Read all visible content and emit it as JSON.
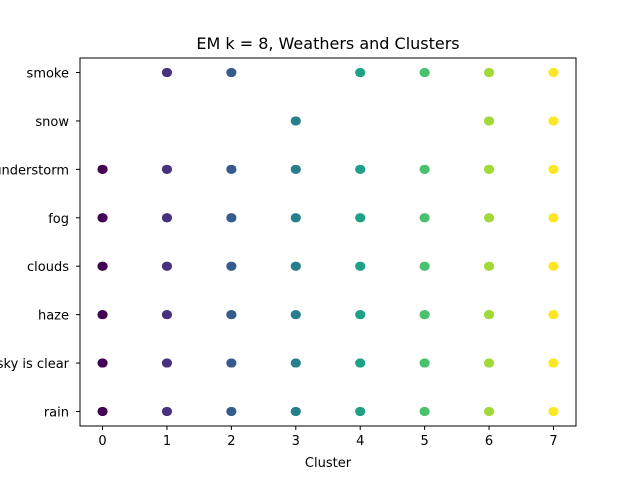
{
  "chart_data": {
    "type": "scatter",
    "title": "EM k = 8, Weathers and Clusters",
    "xlabel": "Cluster",
    "ylabel": "",
    "x_ticks": [
      0,
      1,
      2,
      3,
      4,
      5,
      6,
      7
    ],
    "y_categories": [
      "rain",
      "sky is clear",
      "haze",
      "clouds",
      "fog",
      "thunderstorm",
      "snow",
      "smoke"
    ],
    "xlim": [
      -0.35,
      7.35
    ],
    "ylim": [
      -0.3,
      7.3
    ],
    "grid": false,
    "cluster_colors": [
      "#440154",
      "#46327e",
      "#365c8d",
      "#277f8e",
      "#1fa187",
      "#4ac16d",
      "#a0da39",
      "#fde725"
    ],
    "points": [
      {
        "x": 0,
        "y": "smoke",
        "present": false
      },
      {
        "x": 1,
        "y": "smoke"
      },
      {
        "x": 2,
        "y": "smoke"
      },
      {
        "x": 4,
        "y": "smoke"
      },
      {
        "x": 5,
        "y": "smoke"
      },
      {
        "x": 6,
        "y": "smoke"
      },
      {
        "x": 7,
        "y": "smoke"
      },
      {
        "x": 3,
        "y": "snow"
      },
      {
        "x": 6,
        "y": "snow"
      },
      {
        "x": 7,
        "y": "snow"
      },
      {
        "x": 0,
        "y": "thunderstorm"
      },
      {
        "x": 1,
        "y": "thunderstorm"
      },
      {
        "x": 2,
        "y": "thunderstorm"
      },
      {
        "x": 3,
        "y": "thunderstorm"
      },
      {
        "x": 4,
        "y": "thunderstorm"
      },
      {
        "x": 5,
        "y": "thunderstorm"
      },
      {
        "x": 6,
        "y": "thunderstorm"
      },
      {
        "x": 7,
        "y": "thunderstorm"
      },
      {
        "x": 0,
        "y": "fog"
      },
      {
        "x": 1,
        "y": "fog"
      },
      {
        "x": 2,
        "y": "fog"
      },
      {
        "x": 3,
        "y": "fog"
      },
      {
        "x": 4,
        "y": "fog"
      },
      {
        "x": 5,
        "y": "fog"
      },
      {
        "x": 6,
        "y": "fog"
      },
      {
        "x": 7,
        "y": "fog"
      },
      {
        "x": 0,
        "y": "clouds"
      },
      {
        "x": 1,
        "y": "clouds"
      },
      {
        "x": 2,
        "y": "clouds"
      },
      {
        "x": 3,
        "y": "clouds"
      },
      {
        "x": 4,
        "y": "clouds"
      },
      {
        "x": 5,
        "y": "clouds"
      },
      {
        "x": 6,
        "y": "clouds"
      },
      {
        "x": 7,
        "y": "clouds"
      },
      {
        "x": 0,
        "y": "haze"
      },
      {
        "x": 1,
        "y": "haze"
      },
      {
        "x": 2,
        "y": "haze"
      },
      {
        "x": 3,
        "y": "haze"
      },
      {
        "x": 4,
        "y": "haze"
      },
      {
        "x": 5,
        "y": "haze"
      },
      {
        "x": 6,
        "y": "haze"
      },
      {
        "x": 7,
        "y": "haze"
      },
      {
        "x": 0,
        "y": "sky is clear"
      },
      {
        "x": 1,
        "y": "sky is clear"
      },
      {
        "x": 2,
        "y": "sky is clear"
      },
      {
        "x": 3,
        "y": "sky is clear"
      },
      {
        "x": 4,
        "y": "sky is clear"
      },
      {
        "x": 5,
        "y": "sky is clear"
      },
      {
        "x": 6,
        "y": "sky is clear"
      },
      {
        "x": 7,
        "y": "sky is clear"
      },
      {
        "x": 0,
        "y": "rain"
      },
      {
        "x": 1,
        "y": "rain"
      },
      {
        "x": 2,
        "y": "rain"
      },
      {
        "x": 3,
        "y": "rain"
      },
      {
        "x": 4,
        "y": "rain"
      },
      {
        "x": 5,
        "y": "rain"
      },
      {
        "x": 6,
        "y": "rain"
      },
      {
        "x": 7,
        "y": "rain"
      }
    ]
  }
}
